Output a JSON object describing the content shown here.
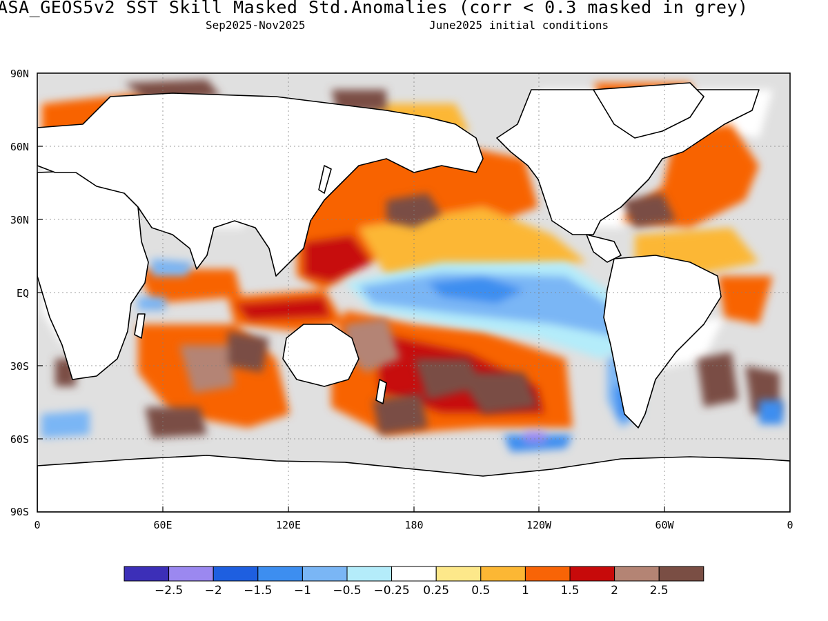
{
  "header": {
    "title": "ASA_GEOS5v2  SST Skill Masked Std.Anomalies (corr < 0.3 masked in grey)",
    "period": "Sep2025-Nov2025",
    "init": "June2025 initial conditions"
  },
  "axes": {
    "lat_labels": [
      "90N",
      "60N",
      "30N",
      "EQ",
      "30S",
      "60S",
      "90S"
    ],
    "lon_labels": [
      "0",
      "60E",
      "120E",
      "180",
      "120W",
      "60W",
      "0"
    ]
  },
  "colors": {
    "mask_grey": "#e0e0e0",
    "land": "#ffffff",
    "grid": "#808080"
  },
  "colorbar": {
    "labels": [
      "-2.5",
      "-2",
      "-1.5",
      "-1",
      "-0.5",
      "-0.25",
      "0.25",
      "0.5",
      "1",
      "1.5",
      "2",
      "2.5"
    ],
    "colors": [
      "#3c2fb8",
      "#9b88f0",
      "#1e5fe0",
      "#3d8ef0",
      "#7ab6f5",
      "#b4ecfa",
      "#ffffff",
      "#fde88a",
      "#fcb734",
      "#f86406",
      "#c70a0a",
      "#b48474",
      "#7a4e44"
    ]
  }
}
